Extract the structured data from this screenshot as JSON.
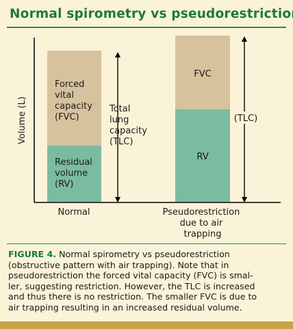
{
  "title": "Normal spirometry vs pseudorestriction",
  "colors": {
    "title": "#1b7a3d",
    "fvc": "#d7c29e",
    "rv": "#7bbca1",
    "background": "#fbf3d8",
    "accent_bar": "#c9a34a"
  },
  "diagram": {
    "y_axis_label": "Volume (L)",
    "normal": {
      "category": "Normal",
      "fvc_label": [
        "Forced",
        "vital",
        "capacity",
        "(FVC)"
      ],
      "rv_label": [
        "Residual",
        "volume",
        "(RV)"
      ],
      "tlc_label": [
        "Total",
        "lung",
        "capacity",
        "(TLC)"
      ],
      "fvc": 139,
      "rv": 82
    },
    "pseudo": {
      "category": [
        "Pseudorestriction",
        "due to air",
        "trapping"
      ],
      "fvc_label": "FVC",
      "rv_label": "RV",
      "tlc_label": "(TLC)",
      "fvc": 108,
      "rv": 135
    }
  },
  "caption": {
    "label": "FIGURE 4.",
    "lines": [
      " Normal spirometry vs pseudorestriction",
      "(obstructive pattern with air trapping). Note that in",
      "pseudorestriction the forced vital capacity (FVC) is smal-",
      "ler, suggesting restriction. However, the TLC is increased",
      "and thus there is no restriction. The smaller FVC is due to",
      "air trapping resulting in an increased residual volume."
    ]
  }
}
